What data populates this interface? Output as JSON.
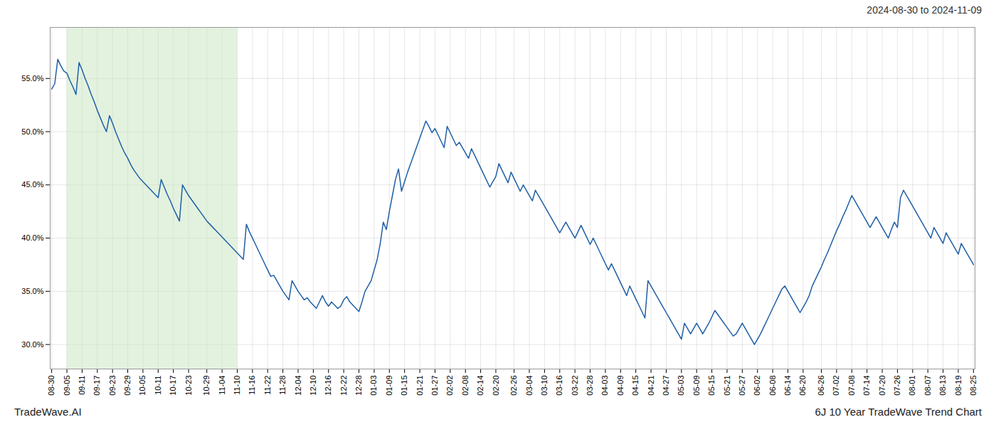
{
  "chart_data": {
    "type": "line",
    "title": "2024-08-30 to 2024-11-09",
    "annotations": [
      "TradeWave.AI",
      "6J 10 Year TradeWave Trend Chart"
    ],
    "color": "#1f5fa6",
    "grid": true,
    "ylim": [
      0.277,
      0.598
    ],
    "yticks": [
      {
        "value": 0.3,
        "label": "30.0%"
      },
      {
        "value": 0.35,
        "label": "35.0%"
      },
      {
        "value": 0.4,
        "label": "40.0%"
      },
      {
        "value": 0.45,
        "label": "45.0%"
      },
      {
        "value": 0.5,
        "label": "50.0%"
      },
      {
        "value": 0.55,
        "label": "55.0%"
      }
    ],
    "shaded_range": {
      "from": "09-05",
      "to": "11-10",
      "color": "#c8e6c0"
    },
    "categories": [
      "08-30",
      null,
      null,
      null,
      null,
      "09-05",
      null,
      null,
      null,
      null,
      "09-11",
      null,
      null,
      null,
      null,
      "09-17",
      null,
      null,
      null,
      null,
      "09-23",
      null,
      null,
      null,
      null,
      "09-29",
      null,
      null,
      null,
      null,
      "10-05",
      null,
      null,
      null,
      null,
      "10-11",
      null,
      null,
      null,
      null,
      "10-17",
      null,
      null,
      null,
      null,
      "10-23",
      null,
      null,
      null,
      null,
      null,
      "10-29",
      null,
      null,
      null,
      null,
      "11-04",
      null,
      null,
      null,
      null,
      "11-10",
      null,
      null,
      null,
      null,
      "11-16",
      null,
      null,
      null,
      null,
      "11-22",
      null,
      null,
      null,
      null,
      "11-28",
      null,
      null,
      null,
      null,
      "12-04",
      null,
      null,
      null,
      null,
      "12-10",
      null,
      null,
      null,
      null,
      "12-16",
      null,
      null,
      null,
      null,
      "12-22",
      null,
      null,
      null,
      null,
      "12-28",
      null,
      null,
      null,
      null,
      "01-03",
      null,
      null,
      null,
      null,
      "01-09",
      null,
      null,
      null,
      null,
      "01-15",
      null,
      null,
      null,
      null,
      "01-21",
      null,
      null,
      null,
      null,
      "01-27",
      null,
      null,
      null,
      null,
      "02-02",
      null,
      null,
      null,
      null,
      "02-08",
      null,
      null,
      null,
      null,
      "02-14",
      null,
      null,
      null,
      null,
      "02-20",
      null,
      null,
      null,
      null,
      null,
      "02-26",
      null,
      null,
      null,
      null,
      "03-04",
      null,
      null,
      null,
      null,
      "03-10",
      null,
      null,
      null,
      null,
      "03-16",
      null,
      null,
      null,
      null,
      "03-22",
      null,
      null,
      null,
      null,
      "03-28",
      null,
      null,
      null,
      null,
      "04-03",
      null,
      null,
      null,
      null,
      "04-09",
      null,
      null,
      null,
      null,
      "04-15",
      null,
      null,
      null,
      null,
      "04-21",
      null,
      null,
      null,
      null,
      "04-27",
      null,
      null,
      null,
      null,
      "05-03",
      null,
      null,
      null,
      null,
      "05-09",
      null,
      null,
      null,
      null,
      "05-15",
      null,
      null,
      null,
      null,
      "05-21",
      null,
      null,
      null,
      null,
      "05-27",
      null,
      null,
      null,
      null,
      "06-02",
      null,
      null,
      null,
      null,
      "06-08",
      null,
      null,
      null,
      null,
      "06-14",
      null,
      null,
      null,
      null,
      "06-20",
      null,
      null,
      null,
      null,
      null,
      "06-26",
      null,
      null,
      null,
      null,
      "07-02",
      null,
      null,
      null,
      null,
      "07-08",
      null,
      null,
      null,
      null,
      "07-14",
      null,
      null,
      null,
      null,
      "07-20",
      null,
      null,
      null,
      null,
      "07-26",
      null,
      null,
      null,
      null,
      "08-01",
      null,
      null,
      null,
      null,
      "08-07",
      null,
      null,
      null,
      null,
      "08-13",
      null,
      null,
      null,
      null,
      "08-19",
      null,
      null,
      null,
      null,
      "08-25"
    ],
    "values": [
      0.54,
      0.545,
      0.568,
      0.562,
      0.557,
      0.555,
      0.548,
      0.542,
      0.535,
      0.565,
      0.558,
      0.55,
      0.543,
      0.535,
      0.528,
      0.52,
      0.513,
      0.506,
      0.5,
      0.515,
      0.508,
      0.5,
      0.493,
      0.486,
      0.48,
      0.475,
      0.469,
      0.464,
      0.46,
      0.456,
      0.453,
      0.45,
      0.447,
      0.444,
      0.441,
      0.438,
      0.455,
      0.448,
      0.441,
      0.435,
      0.428,
      0.422,
      0.416,
      0.45,
      0.445,
      0.44,
      0.436,
      0.432,
      0.428,
      0.424,
      0.42,
      0.416,
      0.413,
      0.41,
      0.407,
      0.404,
      0.401,
      0.398,
      0.395,
      0.392,
      0.389,
      0.386,
      0.383,
      0.38,
      0.413,
      0.406,
      0.4,
      0.394,
      0.388,
      0.382,
      0.376,
      0.37,
      0.364,
      0.365,
      0.36,
      0.355,
      0.35,
      0.346,
      0.342,
      0.36,
      0.355,
      0.35,
      0.346,
      0.342,
      0.344,
      0.34,
      0.337,
      0.334,
      0.34,
      0.346,
      0.34,
      0.336,
      0.34,
      0.337,
      0.334,
      0.336,
      0.342,
      0.345,
      0.34,
      0.337,
      0.334,
      0.331,
      0.34,
      0.35,
      0.355,
      0.36,
      0.37,
      0.38,
      0.395,
      0.415,
      0.408,
      0.425,
      0.44,
      0.455,
      0.465,
      0.444,
      0.453,
      0.462,
      0.47,
      0.478,
      0.486,
      0.494,
      0.502,
      0.51,
      0.505,
      0.499,
      0.503,
      0.497,
      0.491,
      0.485,
      0.505,
      0.499,
      0.493,
      0.487,
      0.49,
      0.485,
      0.48,
      0.475,
      0.484,
      0.478,
      0.472,
      0.466,
      0.46,
      0.454,
      0.448,
      0.453,
      0.458,
      0.47,
      0.464,
      0.458,
      0.452,
      0.462,
      0.456,
      0.45,
      0.444,
      0.45,
      0.445,
      0.44,
      0.435,
      0.445,
      0.44,
      0.435,
      0.43,
      0.425,
      0.42,
      0.415,
      0.41,
      0.405,
      0.41,
      0.415,
      0.41,
      0.405,
      0.4,
      0.406,
      0.412,
      0.406,
      0.4,
      0.394,
      0.4,
      0.394,
      0.388,
      0.382,
      0.376,
      0.37,
      0.376,
      0.37,
      0.364,
      0.358,
      0.352,
      0.346,
      0.355,
      0.349,
      0.343,
      0.337,
      0.331,
      0.325,
      0.36,
      0.355,
      0.35,
      0.345,
      0.34,
      0.335,
      0.33,
      0.325,
      0.32,
      0.315,
      0.31,
      0.305,
      0.32,
      0.315,
      0.31,
      0.315,
      0.32,
      0.315,
      0.31,
      0.315,
      0.32,
      0.326,
      0.332,
      0.328,
      0.324,
      0.32,
      0.316,
      0.312,
      0.308,
      0.31,
      0.315,
      0.32,
      0.315,
      0.31,
      0.305,
      0.3,
      0.305,
      0.31,
      0.316,
      0.322,
      0.328,
      0.334,
      0.34,
      0.346,
      0.352,
      0.355,
      0.35,
      0.345,
      0.34,
      0.335,
      0.33,
      0.335,
      0.34,
      0.346,
      0.355,
      0.361,
      0.367,
      0.373,
      0.38,
      0.386,
      0.393,
      0.4,
      0.407,
      0.413,
      0.42,
      0.426,
      0.433,
      0.44,
      0.435,
      0.43,
      0.425,
      0.42,
      0.415,
      0.41,
      0.415,
      0.42,
      0.415,
      0.41,
      0.405,
      0.4,
      0.408,
      0.415,
      0.41,
      0.438,
      0.445,
      0.44,
      0.435,
      0.43,
      0.425,
      0.42,
      0.415,
      0.41,
      0.405,
      0.4,
      0.41,
      0.405,
      0.4,
      0.395,
      0.405,
      0.4,
      0.395,
      0.39,
      0.385,
      0.395,
      0.39,
      0.385,
      0.38,
      0.375
    ]
  }
}
